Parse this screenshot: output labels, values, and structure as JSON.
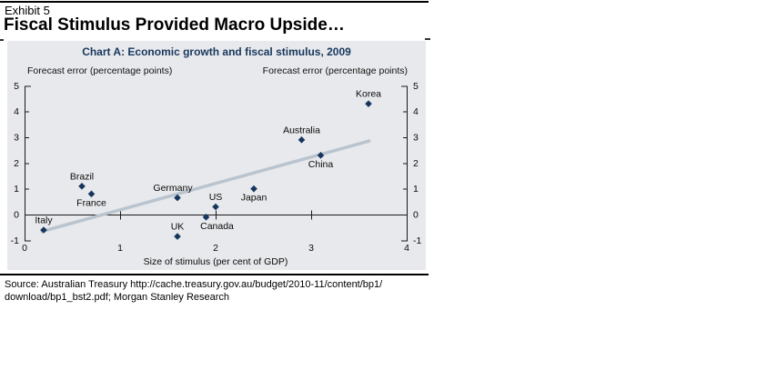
{
  "page": {
    "exhibit_label": "Exhibit 5",
    "headline": "Fiscal Stimulus Provided Macro Upside…",
    "source_line1": "Source: Australian Treasury http://cache.treasury.gov.au/budget/2010-11/content/bp1/",
    "source_line2": "download/bp1_bst2.pdf; Morgan Stanley Research"
  },
  "chart_data": {
    "type": "scatter",
    "title": "Chart A: Economic growth and fiscal stimulus, 2009",
    "left_axis_label": "Forecast error (percentage points)",
    "right_axis_label": "Forecast error (percentage points)",
    "xlabel": "Size of stimulus (per cent of GDP)",
    "xlim": [
      0,
      4
    ],
    "ylim": [
      -1,
      5
    ],
    "x_ticks": [
      0,
      1,
      2,
      3,
      4
    ],
    "y_ticks": [
      -1,
      0,
      1,
      2,
      3,
      4,
      5
    ],
    "grid": false,
    "legend": null,
    "points": [
      {
        "label": "Italy",
        "x": 0.2,
        "y": -0.6,
        "label_position": "above"
      },
      {
        "label": "Brazil",
        "x": 0.6,
        "y": 1.1,
        "label_position": "above"
      },
      {
        "label": "France",
        "x": 0.7,
        "y": 0.8,
        "label_position": "below"
      },
      {
        "label": "Germany",
        "x": 1.6,
        "y": 0.65,
        "label_position": "above",
        "label_dx": -5
      },
      {
        "label": "UK",
        "x": 1.6,
        "y": -0.85,
        "label_position": "above"
      },
      {
        "label": "Canada",
        "x": 1.9,
        "y": -0.1,
        "label_position": "below",
        "label_dx": 12
      },
      {
        "label": "US",
        "x": 2.0,
        "y": 0.3,
        "label_position": "above"
      },
      {
        "label": "Japan",
        "x": 2.4,
        "y": 1.0,
        "label_position": "below"
      },
      {
        "label": "Australia",
        "x": 2.9,
        "y": 2.9,
        "label_position": "above"
      },
      {
        "label": "China",
        "x": 3.1,
        "y": 2.3,
        "label_position": "below"
      },
      {
        "label": "Korea",
        "x": 3.6,
        "y": 4.3,
        "label_position": "above"
      }
    ],
    "trend_line": {
      "x1": 0.17,
      "y1": -0.67,
      "x2": 3.62,
      "y2": 2.87
    },
    "colors": {
      "point": "#17365d",
      "trend": "#b9c4cf",
      "panel_bg": "#e8e9ec",
      "title": "#17375d",
      "axis": "#1a1a1a"
    }
  }
}
